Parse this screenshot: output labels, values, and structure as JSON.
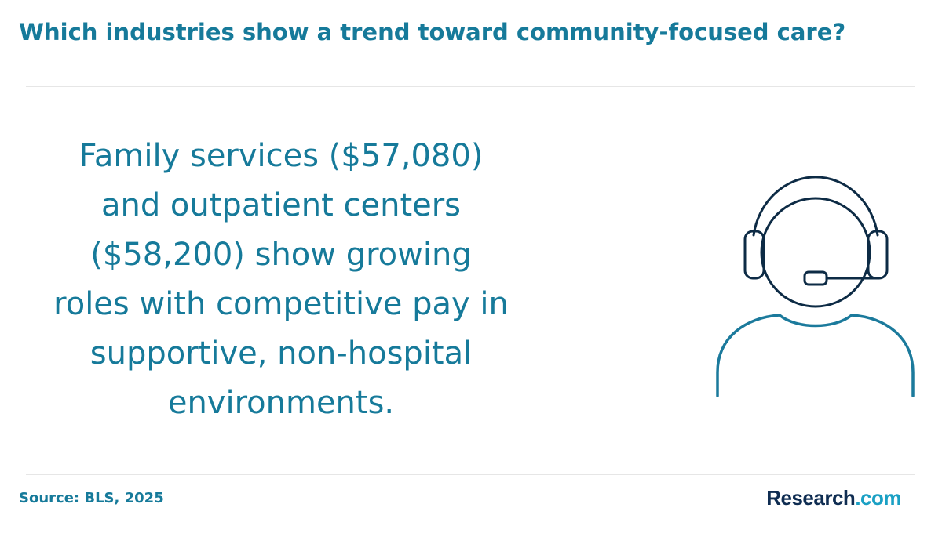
{
  "header": {
    "title": "Which industries show a trend toward community-focused care?"
  },
  "body": {
    "text": "Family services ($57,080) and outpatient centers ($58,200) show growing roles with competitive pay in supportive, non-hospital environments."
  },
  "footer": {
    "source": "Source: BLS, 2025",
    "logo": {
      "brand": "Research",
      "suffix": ".com"
    }
  }
}
